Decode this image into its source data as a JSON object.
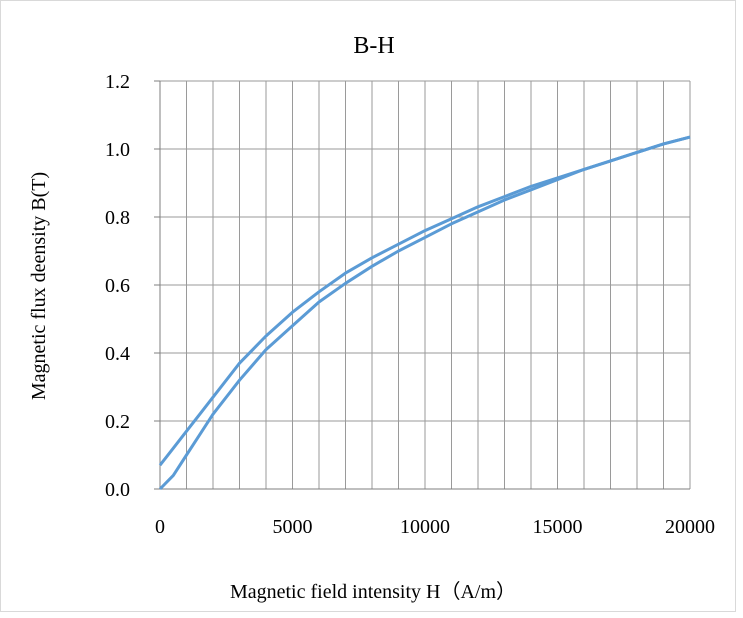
{
  "chart_data": {
    "type": "line",
    "title": "B-H",
    "xlabel": "Magnetic field intensity H（A/m）",
    "ylabel": "Magnetic flux deensity B(T)",
    "xlim": [
      0,
      20000
    ],
    "ylim": [
      0,
      1.2
    ],
    "x_ticks": [
      "0",
      "5000",
      "10000",
      "15000",
      "20000"
    ],
    "y_ticks": [
      "0.0",
      "0.2",
      "0.4",
      "0.6",
      "0.8",
      "1.0",
      "1.2"
    ],
    "grid": {
      "vertical_every": 1000,
      "horizontal_every": 0.2
    },
    "legend": "none",
    "colors": {
      "line": "#5B9BD5",
      "grid": "#9a9a9a",
      "axis": "#7f7f7f"
    },
    "series": [
      {
        "x": [
          0,
          500,
          1000,
          1500,
          2000,
          3000,
          4000,
          5000,
          6000,
          7000,
          8000,
          9000,
          10000,
          11000,
          12000,
          13000,
          14000,
          15000,
          16000,
          17000,
          18000,
          19000,
          20000
        ],
        "values": [
          0.07,
          0.12,
          0.17,
          0.22,
          0.27,
          0.37,
          0.45,
          0.52,
          0.58,
          0.635,
          0.68,
          0.72,
          0.76,
          0.795,
          0.83,
          0.86,
          0.89,
          0.915,
          0.94,
          0.965,
          0.99,
          1.015,
          1.035
        ]
      },
      {
        "x": [
          0,
          500,
          1000,
          1500,
          2000,
          3000,
          4000,
          5000,
          6000,
          7000,
          8000,
          9000,
          10000,
          11000,
          12000,
          13000,
          14000,
          15000,
          16000,
          17000,
          18000,
          19000,
          20000
        ],
        "values": [
          0.0,
          0.04,
          0.1,
          0.16,
          0.22,
          0.32,
          0.41,
          0.48,
          0.55,
          0.605,
          0.655,
          0.7,
          0.74,
          0.78,
          0.815,
          0.85,
          0.88,
          0.91,
          0.94,
          0.965,
          0.99,
          1.015,
          1.035
        ]
      }
    ]
  }
}
